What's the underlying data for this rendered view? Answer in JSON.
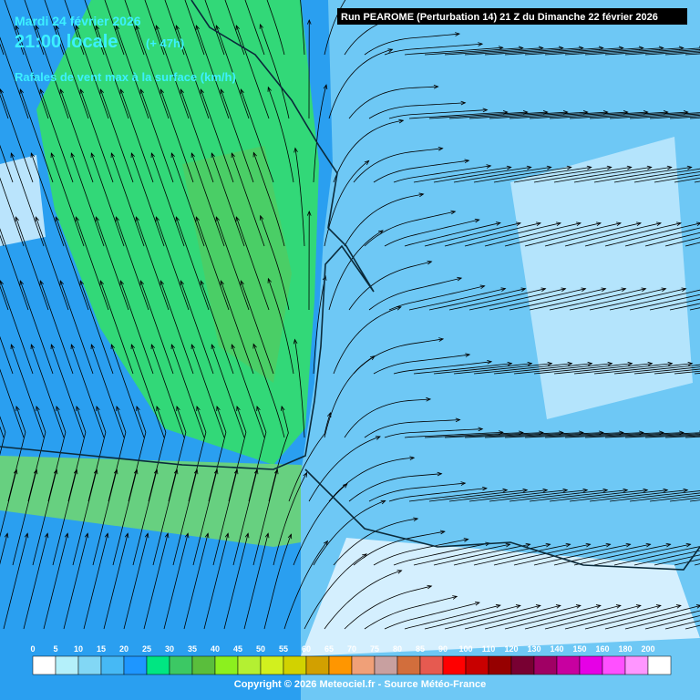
{
  "header": {
    "date": "Mardi 24 février 2026",
    "time": "21:00 locale",
    "lead": "(+ 47h)",
    "parameter": "Rafales de vent max à la surface (km/h)"
  },
  "run_info": "Run PEAROME (Perturbation 14) 21 Z du Dimanche 22 février 2026",
  "legend": {
    "stops": [
      {
        "label": "0",
        "color": "#ffffff"
      },
      {
        "label": "5",
        "color": "#b4f0fa"
      },
      {
        "label": "10",
        "color": "#82d7f5"
      },
      {
        "label": "15",
        "color": "#46b9f5"
      },
      {
        "label": "20",
        "color": "#1e96ff"
      },
      {
        "label": "25",
        "color": "#00e682"
      },
      {
        "label": "30",
        "color": "#3cc864"
      },
      {
        "label": "35",
        "color": "#5abe3c"
      },
      {
        "label": "40",
        "color": "#8cf01e"
      },
      {
        "label": "45",
        "color": "#b4f032"
      },
      {
        "label": "50",
        "color": "#d2f01e"
      },
      {
        "label": "55",
        "color": "#d2d200"
      },
      {
        "label": "60",
        "color": "#d2a000"
      },
      {
        "label": "65",
        "color": "#ff9600"
      },
      {
        "label": "70",
        "color": "#f0a078"
      },
      {
        "label": "75",
        "color": "#c8a0a0"
      },
      {
        "label": "80",
        "color": "#d26e3c"
      },
      {
        "label": "85",
        "color": "#e65a50"
      },
      {
        "label": "90",
        "color": "#ff0000"
      },
      {
        "label": "100",
        "color": "#c80000"
      },
      {
        "label": "110",
        "color": "#960000"
      },
      {
        "label": "120",
        "color": "#780032"
      },
      {
        "label": "130",
        "color": "#a00064"
      },
      {
        "label": "140",
        "color": "#c800a0"
      },
      {
        "label": "150",
        "color": "#e600e6"
      },
      {
        "label": "160",
        "color": "#ff50ff"
      },
      {
        "label": "180",
        "color": "#ff96ff"
      },
      {
        "label": "200",
        "color": "#ffffff"
      }
    ]
  },
  "copyright": "Copyright © 2026 Meteociel.fr - Source Météo-France"
}
